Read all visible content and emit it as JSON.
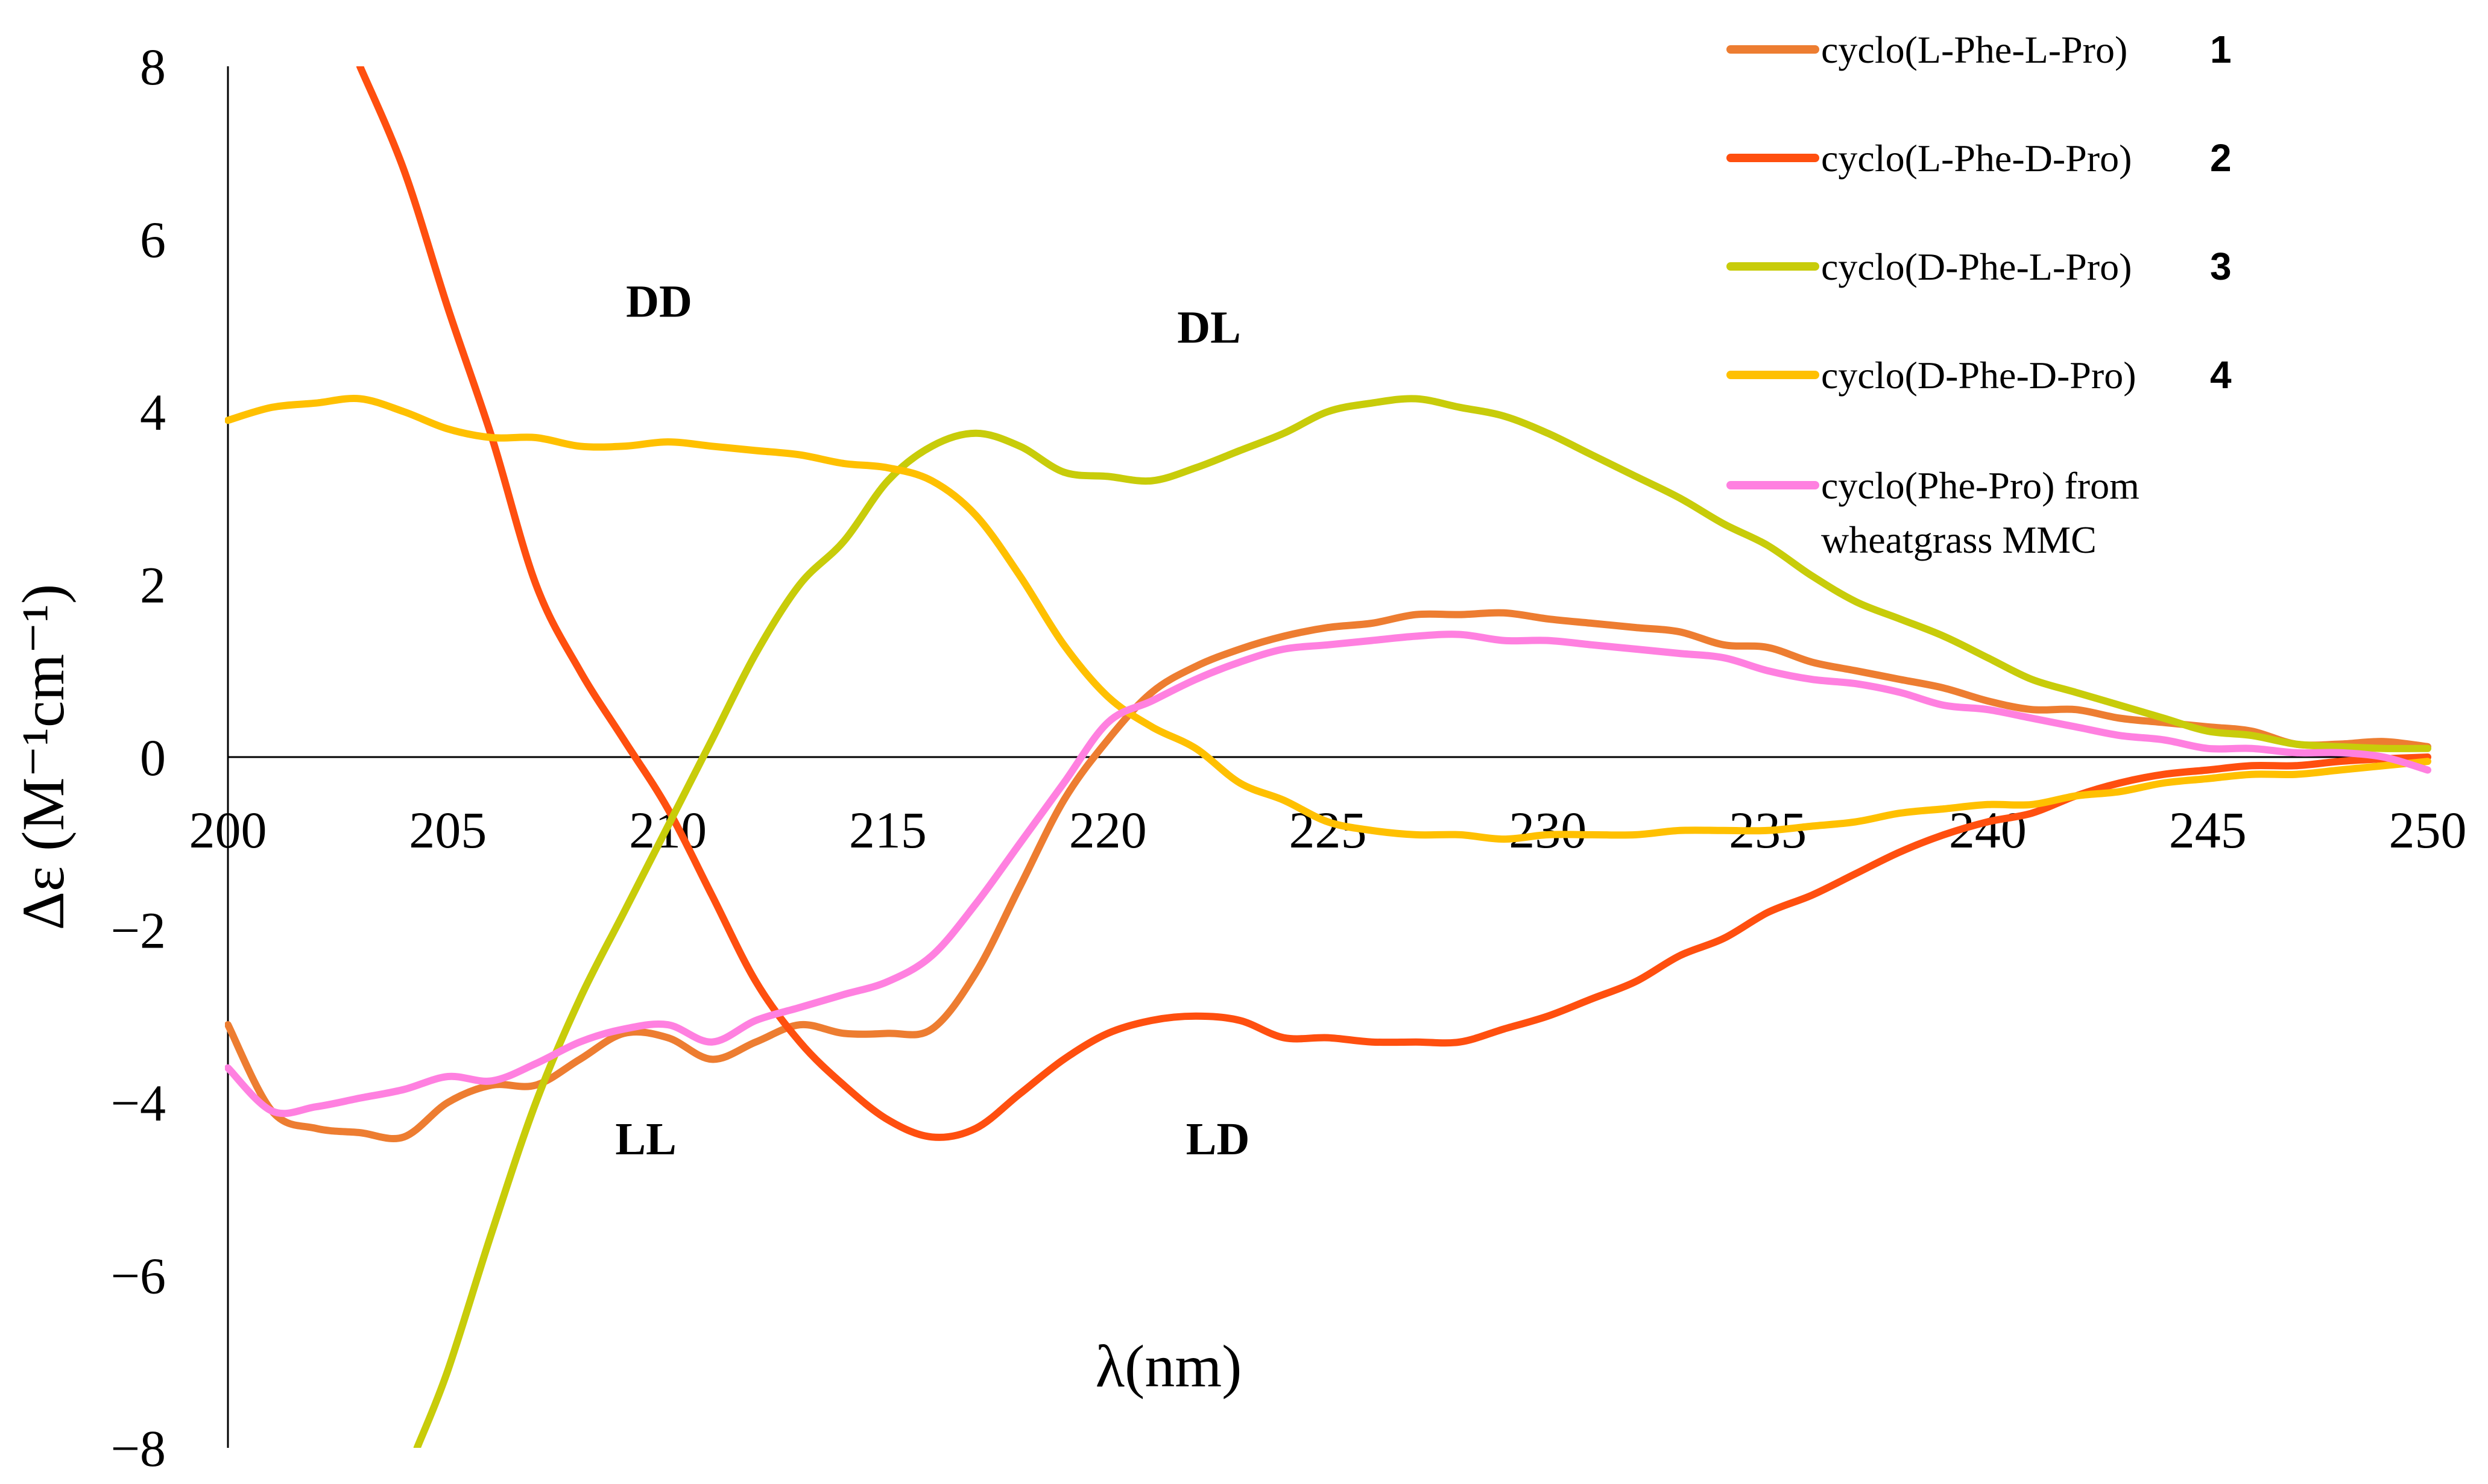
{
  "chart_data": {
    "type": "line",
    "title": "",
    "xlabel": "λ(nm)",
    "ylabel": "Δε (M⁻¹cm⁻¹)",
    "xlim": [
      200,
      250
    ],
    "ylim": [
      -8,
      8
    ],
    "xticks": [
      200,
      205,
      210,
      215,
      220,
      225,
      230,
      235,
      240,
      245,
      250
    ],
    "yticks": [
      -8,
      -6,
      -4,
      -2,
      0,
      2,
      4,
      6,
      8
    ],
    "ytick_labels": [
      "−8",
      "−6",
      "−4",
      "−2",
      "0",
      "2",
      "4",
      "6",
      "8"
    ],
    "grid": false,
    "legend_position": "top-right",
    "annotations": [
      {
        "text": "DD",
        "x": 209.8,
        "y": 5.1
      },
      {
        "text": "DL",
        "x": 222.3,
        "y": 4.8
      },
      {
        "text": "LL",
        "x": 209.5,
        "y": -4.6
      },
      {
        "text": "LD",
        "x": 222.5,
        "y": -4.6
      }
    ],
    "series": [
      {
        "name": "cyclo(L-Phe-L-Pro)",
        "number": "1",
        "color": "#ed7d31",
        "x": [
          200,
          201,
          202,
          203,
          204,
          205,
          206,
          207,
          208,
          209,
          210,
          211,
          212,
          213,
          214,
          215,
          216,
          217,
          218,
          219,
          220,
          221,
          222,
          223,
          224,
          225,
          226,
          227,
          228,
          229,
          230,
          231,
          232,
          233,
          234,
          235,
          236,
          237,
          238,
          239,
          240,
          241,
          242,
          243,
          244,
          245,
          246,
          247,
          248,
          249,
          250
        ],
        "y": [
          -3.1,
          -4.1,
          -4.3,
          -4.35,
          -4.4,
          -4.0,
          -3.8,
          -3.8,
          -3.5,
          -3.2,
          -3.25,
          -3.5,
          -3.3,
          -3.1,
          -3.2,
          -3.2,
          -3.15,
          -2.5,
          -1.5,
          -0.5,
          0.2,
          0.75,
          1.05,
          1.25,
          1.4,
          1.5,
          1.55,
          1.65,
          1.65,
          1.67,
          1.6,
          1.55,
          1.5,
          1.45,
          1.3,
          1.27,
          1.1,
          1.0,
          0.9,
          0.8,
          0.65,
          0.55,
          0.55,
          0.45,
          0.4,
          0.35,
          0.3,
          0.15,
          0.15,
          0.18,
          0.12
        ]
      },
      {
        "name": "cyclo(L-Phe-D-Pro)",
        "number": "2",
        "color": "#ff4f0f",
        "x": [
          203,
          204,
          205,
          206,
          207,
          208,
          209,
          210,
          211,
          212,
          213,
          214,
          215,
          216,
          217,
          218,
          219,
          220,
          221,
          222,
          223,
          224,
          225,
          226,
          227,
          228,
          229,
          230,
          231,
          232,
          233,
          234,
          235,
          236,
          237,
          238,
          239,
          240,
          241,
          242,
          243,
          244,
          245,
          246,
          247,
          248,
          249,
          250
        ],
        "y": [
          8.0,
          6.8,
          5.2,
          3.7,
          2.0,
          1.0,
          0.2,
          -0.6,
          -1.6,
          -2.6,
          -3.3,
          -3.8,
          -4.2,
          -4.4,
          -4.3,
          -3.9,
          -3.5,
          -3.2,
          -3.05,
          -3.0,
          -3.05,
          -3.25,
          -3.25,
          -3.3,
          -3.3,
          -3.3,
          -3.15,
          -3.0,
          -2.8,
          -2.6,
          -2.3,
          -2.1,
          -1.8,
          -1.6,
          -1.35,
          -1.1,
          -0.9,
          -0.75,
          -0.65,
          -0.45,
          -0.3,
          -0.2,
          -0.15,
          -0.1,
          -0.1,
          -0.05,
          -0.02,
          0.0
        ]
      },
      {
        "name": "cyclo(D-Phe-L-Pro)",
        "number": "3",
        "color": "#c8cc0a",
        "x": [
          204.3,
          205,
          206,
          207,
          208,
          209,
          210,
          211,
          212,
          213,
          214,
          215,
          216,
          217,
          218,
          219,
          220,
          221,
          222,
          223,
          224,
          225,
          226,
          227,
          228,
          229,
          230,
          231,
          232,
          233,
          234,
          235,
          236,
          237,
          238,
          239,
          240,
          241,
          242,
          243,
          244,
          245,
          246,
          247,
          248,
          249,
          250
        ],
        "y": [
          -8.0,
          -7.1,
          -5.5,
          -4.0,
          -2.8,
          -1.8,
          -0.8,
          0.2,
          1.2,
          2.0,
          2.5,
          3.2,
          3.6,
          3.75,
          3.6,
          3.3,
          3.25,
          3.2,
          3.35,
          3.55,
          3.75,
          4.0,
          4.1,
          4.15,
          4.05,
          3.95,
          3.75,
          3.5,
          3.25,
          3.0,
          2.7,
          2.45,
          2.1,
          1.8,
          1.6,
          1.4,
          1.15,
          0.9,
          0.75,
          0.6,
          0.45,
          0.3,
          0.25,
          0.15,
          0.12,
          0.1,
          0.1
        ]
      },
      {
        "name": "cyclo(D-Phe-D-Pro)",
        "number": "4",
        "color": "#ffc000",
        "x": [
          200,
          201,
          202,
          203,
          204,
          205,
          206,
          207,
          208,
          209,
          210,
          211,
          212,
          213,
          214,
          215,
          216,
          217,
          218,
          219,
          220,
          221,
          222,
          223,
          224,
          225,
          226,
          227,
          228,
          229,
          230,
          231,
          232,
          233,
          234,
          235,
          236,
          237,
          238,
          239,
          240,
          241,
          242,
          243,
          244,
          245,
          246,
          247,
          248,
          249,
          250
        ],
        "y": [
          3.9,
          4.05,
          4.1,
          4.15,
          4.0,
          3.8,
          3.7,
          3.7,
          3.6,
          3.6,
          3.65,
          3.6,
          3.55,
          3.5,
          3.4,
          3.35,
          3.2,
          2.8,
          2.1,
          1.3,
          0.7,
          0.35,
          0.1,
          -0.3,
          -0.5,
          -0.75,
          -0.85,
          -0.9,
          -0.9,
          -0.95,
          -0.9,
          -0.9,
          -0.9,
          -0.85,
          -0.85,
          -0.85,
          -0.8,
          -0.75,
          -0.65,
          -0.6,
          -0.55,
          -0.55,
          -0.45,
          -0.4,
          -0.3,
          -0.25,
          -0.2,
          -0.2,
          -0.15,
          -0.1,
          -0.05
        ]
      },
      {
        "name": "cyclo(Phe-Pro) from wheatgrass MMC",
        "name_line1": "cyclo(Phe-Pro) from",
        "name_line2": "wheatgrass MMC",
        "number": "",
        "color": "#ff80e0",
        "x": [
          200,
          201,
          202,
          203,
          204,
          205,
          206,
          207,
          208,
          209,
          210,
          211,
          212,
          213,
          214,
          215,
          216,
          217,
          218,
          219,
          220,
          221,
          222,
          223,
          224,
          225,
          226,
          227,
          228,
          229,
          230,
          231,
          232,
          233,
          234,
          235,
          236,
          237,
          238,
          239,
          240,
          241,
          242,
          243,
          244,
          245,
          246,
          247,
          248,
          249,
          250
        ],
        "y": [
          -3.6,
          -4.1,
          -4.05,
          -3.95,
          -3.85,
          -3.7,
          -3.75,
          -3.55,
          -3.3,
          -3.15,
          -3.1,
          -3.3,
          -3.05,
          -2.9,
          -2.75,
          -2.6,
          -2.3,
          -1.7,
          -1.0,
          -0.3,
          0.4,
          0.65,
          0.9,
          1.1,
          1.25,
          1.3,
          1.35,
          1.4,
          1.42,
          1.35,
          1.35,
          1.3,
          1.25,
          1.2,
          1.15,
          1.0,
          0.9,
          0.85,
          0.75,
          0.6,
          0.55,
          0.45,
          0.35,
          0.25,
          0.2,
          0.1,
          0.1,
          0.05,
          0.05,
          0.0,
          -0.15
        ]
      }
    ]
  }
}
